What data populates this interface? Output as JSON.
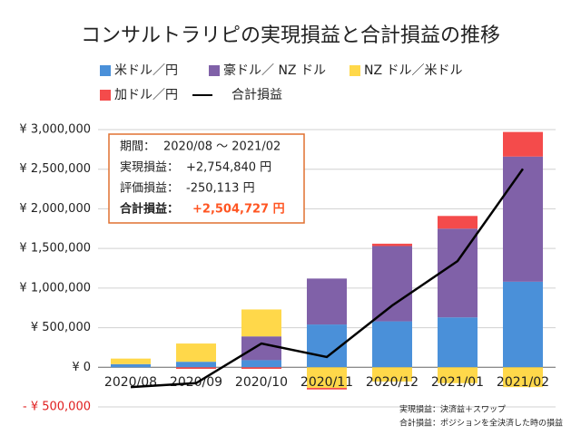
{
  "chart_data": {
    "type": "bar",
    "title": "コンサルトラリピの実現損益と合計損益の推移",
    "categories": [
      "2020/08",
      "2020/09",
      "2020/10",
      "2020/11",
      "2020/12",
      "2021/01",
      "2021/02"
    ],
    "series": [
      {
        "name": "米ドル／円",
        "color": "#4a90d9",
        "values": [
          40000,
          70000,
          90000,
          540000,
          580000,
          630000,
          1080000
        ]
      },
      {
        "name": "豪ドル／ NZ ドル",
        "color": "#8061a8",
        "values": [
          0,
          0,
          300000,
          580000,
          950000,
          1120000,
          1580000
        ]
      },
      {
        "name": "NZ ドル／米ドル",
        "color": "#ffd84a",
        "values": [
          70000,
          230000,
          340000,
          -260000,
          -180000,
          -200000,
          -250000
        ]
      },
      {
        "name": "加ドル／円",
        "color": "#f44b4b",
        "values": [
          0,
          -20000,
          -20000,
          -20000,
          30000,
          160000,
          310000
        ]
      }
    ],
    "line": {
      "name": "合計損益",
      "color": "#000000",
      "values": [
        -250000,
        -200000,
        300000,
        130000,
        780000,
        1340000,
        2504727
      ]
    },
    "ylim": [
      -500000,
      3000000
    ],
    "yticks": [
      {
        "value": -500000,
        "label": "- ¥ 500,000"
      },
      {
        "value": 0,
        "label": "¥ 0"
      },
      {
        "value": 500000,
        "label": "¥ 500,000"
      },
      {
        "value": 1000000,
        "label": "¥ 1,000,000"
      },
      {
        "value": 1500000,
        "label": "¥ 1,500,000"
      },
      {
        "value": 2000000,
        "label": "¥ 2,000,000"
      },
      {
        "value": 2500000,
        "label": "¥ 2,500,000"
      },
      {
        "value": 3000000,
        "label": "¥ 3,000,000"
      }
    ],
    "grid": true,
    "annotations": [
      {
        "label": "期間：",
        "value": "2020/08 ～ 2021/02"
      },
      {
        "label": "実現損益：",
        "value": "+2,754,840 円"
      },
      {
        "label": "評価損益：",
        "value": "-250,113 円"
      },
      {
        "label": "合計損益：",
        "value": "+2,504,727 円"
      }
    ],
    "notes": [
      "実現損益：決済益＋スワップ",
      "合計損益：ポジションを全決済した時の損益"
    ]
  }
}
